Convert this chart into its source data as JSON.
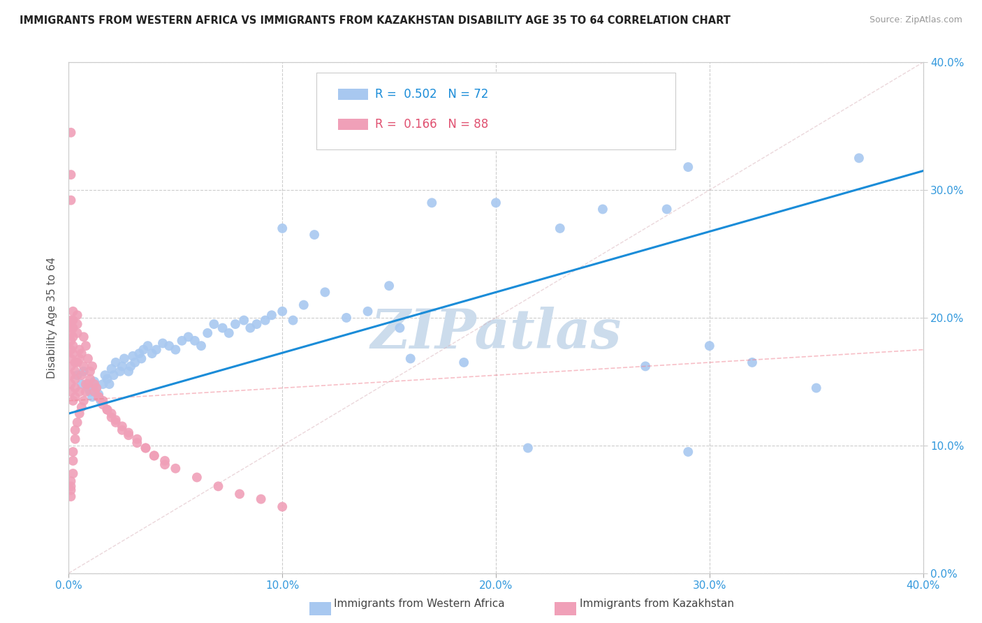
{
  "title": "IMMIGRANTS FROM WESTERN AFRICA VS IMMIGRANTS FROM KAZAKHSTAN DISABILITY AGE 35 TO 64 CORRELATION CHART",
  "source": "Source: ZipAtlas.com",
  "ylabel": "Disability Age 35 to 64",
  "xlim": [
    0.0,
    0.4
  ],
  "ylim": [
    0.0,
    0.4
  ],
  "r_blue": 0.502,
  "n_blue": 72,
  "r_pink": 0.166,
  "n_pink": 88,
  "color_blue": "#a8c8f0",
  "color_blue_line": "#1a8cd8",
  "color_blue_text": "#1a8cd8",
  "color_pink": "#f0a0b8",
  "color_pink_line": "#f08090",
  "color_pink_text": "#e05070",
  "color_diag": "#d8b0b8",
  "watermark_color": "#ccdcec",
  "legend_label_blue": "Immigrants from Western Africa",
  "legend_label_pink": "Immigrants from Kazakhstan",
  "blue_x": [
    0.004,
    0.006,
    0.007,
    0.009,
    0.01,
    0.011,
    0.012,
    0.013,
    0.014,
    0.015,
    0.016,
    0.017,
    0.018,
    0.019,
    0.02,
    0.021,
    0.022,
    0.024,
    0.025,
    0.026,
    0.028,
    0.029,
    0.03,
    0.031,
    0.033,
    0.034,
    0.035,
    0.037,
    0.039,
    0.041,
    0.044,
    0.047,
    0.05,
    0.053,
    0.056,
    0.059,
    0.062,
    0.065,
    0.068,
    0.072,
    0.075,
    0.078,
    0.082,
    0.085,
    0.088,
    0.092,
    0.095,
    0.1,
    0.105,
    0.11,
    0.115,
    0.12,
    0.13,
    0.14,
    0.15,
    0.16,
    0.17,
    0.185,
    0.2,
    0.215,
    0.23,
    0.25,
    0.27,
    0.29,
    0.155,
    0.28,
    0.3,
    0.32,
    0.35,
    0.1,
    0.37,
    0.29
  ],
  "blue_y": [
    0.155,
    0.148,
    0.158,
    0.145,
    0.142,
    0.138,
    0.15,
    0.145,
    0.14,
    0.135,
    0.148,
    0.155,
    0.152,
    0.148,
    0.16,
    0.155,
    0.165,
    0.158,
    0.162,
    0.168,
    0.158,
    0.162,
    0.17,
    0.165,
    0.172,
    0.168,
    0.175,
    0.178,
    0.172,
    0.175,
    0.18,
    0.178,
    0.175,
    0.182,
    0.185,
    0.182,
    0.178,
    0.188,
    0.195,
    0.192,
    0.188,
    0.195,
    0.198,
    0.192,
    0.195,
    0.198,
    0.202,
    0.205,
    0.198,
    0.21,
    0.265,
    0.22,
    0.2,
    0.205,
    0.225,
    0.168,
    0.29,
    0.165,
    0.29,
    0.098,
    0.27,
    0.285,
    0.162,
    0.095,
    0.192,
    0.285,
    0.178,
    0.165,
    0.145,
    0.27,
    0.325,
    0.318
  ],
  "pink_x": [
    0.001,
    0.001,
    0.001,
    0.001,
    0.001,
    0.001,
    0.001,
    0.001,
    0.001,
    0.001,
    0.001,
    0.001,
    0.001,
    0.002,
    0.002,
    0.002,
    0.002,
    0.002,
    0.002,
    0.002,
    0.003,
    0.003,
    0.003,
    0.003,
    0.003,
    0.004,
    0.004,
    0.004,
    0.004,
    0.005,
    0.005,
    0.005,
    0.006,
    0.006,
    0.007,
    0.007,
    0.008,
    0.008,
    0.009,
    0.01,
    0.011,
    0.012,
    0.013,
    0.014,
    0.016,
    0.018,
    0.02,
    0.022,
    0.025,
    0.028,
    0.032,
    0.036,
    0.04,
    0.045,
    0.05,
    0.06,
    0.07,
    0.08,
    0.09,
    0.1,
    0.001,
    0.001,
    0.001,
    0.001,
    0.002,
    0.002,
    0.002,
    0.003,
    0.003,
    0.004,
    0.005,
    0.006,
    0.007,
    0.008,
    0.009,
    0.01,
    0.012,
    0.014,
    0.016,
    0.018,
    0.02,
    0.022,
    0.025,
    0.028,
    0.032,
    0.036,
    0.04,
    0.045
  ],
  "pink_y": [
    0.345,
    0.312,
    0.292,
    0.198,
    0.192,
    0.188,
    0.182,
    0.175,
    0.168,
    0.162,
    0.155,
    0.148,
    0.142,
    0.205,
    0.198,
    0.192,
    0.185,
    0.178,
    0.172,
    0.135,
    0.165,
    0.158,
    0.152,
    0.145,
    0.138,
    0.202,
    0.195,
    0.188,
    0.165,
    0.175,
    0.168,
    0.142,
    0.172,
    0.155,
    0.185,
    0.162,
    0.178,
    0.148,
    0.168,
    0.158,
    0.162,
    0.148,
    0.145,
    0.138,
    0.135,
    0.128,
    0.125,
    0.12,
    0.115,
    0.11,
    0.105,
    0.098,
    0.092,
    0.088,
    0.082,
    0.075,
    0.068,
    0.062,
    0.058,
    0.052,
    0.072,
    0.068,
    0.065,
    0.06,
    0.095,
    0.088,
    0.078,
    0.112,
    0.105,
    0.118,
    0.125,
    0.13,
    0.135,
    0.142,
    0.148,
    0.152,
    0.142,
    0.138,
    0.132,
    0.128,
    0.122,
    0.118,
    0.112,
    0.108,
    0.102,
    0.098,
    0.092,
    0.085
  ]
}
